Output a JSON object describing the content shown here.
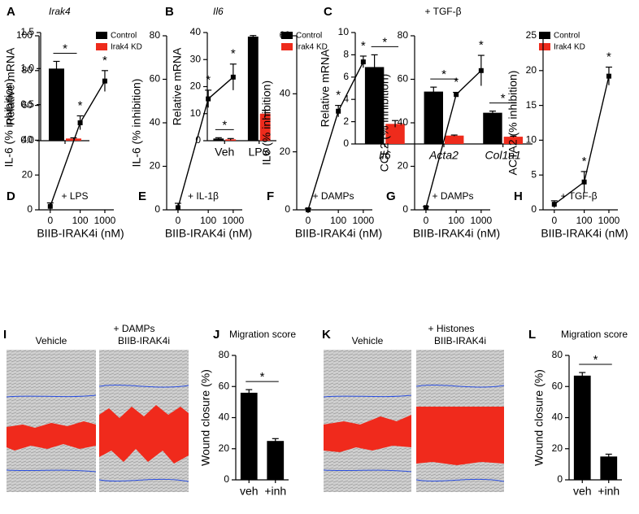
{
  "chart_data": [
    {
      "type": "bar",
      "panel": "A",
      "title": "Irak4",
      "ylabel": "Relative mRNA",
      "categories": [
        null
      ],
      "series": [
        {
          "name": "Control",
          "color": "#000000",
          "values": [
            1.0
          ],
          "errors": [
            0.1
          ]
        },
        {
          "name": "Irak4 KD",
          "color": "#ee2b1c",
          "values": [
            0.03
          ],
          "errors": [
            0.01
          ]
        }
      ],
      "ylim": [
        0,
        1.5
      ],
      "yticks": [
        {
          "value": 0,
          "label": "0.0"
        },
        {
          "value": 0.5,
          "label": "0.5"
        },
        {
          "value": 1,
          "label": "1.0"
        },
        {
          "value": 1.5,
          "label": "1.5"
        }
      ],
      "legend": "right",
      "stars": [
        "*"
      ]
    },
    {
      "type": "bar",
      "panel": "B",
      "title": "Il6",
      "ylabel": "Relative mRNA",
      "categories": [
        "Veh",
        "LPS"
      ],
      "series": [
        {
          "name": "Control",
          "color": "#000000",
          "values": [
            0.8,
            38.5
          ],
          "errors": [
            0.3,
            0.4
          ]
        },
        {
          "name": "Irak4 KD",
          "color": "#ee2b1c",
          "values": [
            0.5,
            10
          ],
          "errors": [
            0.3,
            1.2
          ]
        }
      ],
      "ylim": [
        0,
        40
      ],
      "yticks": [
        0,
        10,
        20,
        30,
        40
      ],
      "legend": "right",
      "stars": [
        "*"
      ]
    },
    {
      "type": "bar",
      "panel": "C",
      "title": "+ TGF-β",
      "ylabel": "Relative mRNA",
      "categories": [
        "Il6",
        "Acta2",
        "Col1a1"
      ],
      "series": [
        {
          "name": "Control",
          "color": "#000000",
          "values": [
            6.9,
            4.7,
            2.8
          ],
          "errors": [
            1.1,
            0.4,
            0.15
          ]
        },
        {
          "name": "Irak4 KD",
          "color": "#ee2b1c",
          "values": [
            1.8,
            0.75,
            0.65
          ],
          "errors": [
            0.3,
            0.05,
            0.05
          ]
        }
      ],
      "ylim": [
        0,
        10
      ],
      "yticks": [
        0,
        2,
        4,
        6,
        8,
        10
      ],
      "legend": "right",
      "stars": [
        "*",
        "*",
        "*"
      ]
    },
    {
      "type": "line",
      "panel": "D",
      "title": "+ LPS",
      "ylabel": "IL-6 (% inhibition)",
      "xlabel": "BIIB-IRAK4i (nM)",
      "categories": [
        "0",
        "100",
        "1000"
      ],
      "values": [
        2,
        50,
        74
      ],
      "errors": [
        2,
        4,
        6
      ],
      "color": "#000000",
      "ylim": [
        0,
        100
      ],
      "yticks": [
        0,
        20,
        40,
        60,
        80,
        100
      ],
      "stars": [
        "*",
        "*"
      ]
    },
    {
      "type": "line",
      "panel": "E",
      "title": "+ IL-1β",
      "ylabel": "IL-6 (% inhibition)",
      "xlabel": "BIIB-IRAK4i (nM)",
      "categories": [
        "0",
        "100",
        "1000"
      ],
      "values": [
        1,
        51,
        61
      ],
      "errors": [
        2,
        4,
        6
      ],
      "color": "#000000",
      "ylim": [
        0,
        80
      ],
      "yticks": [
        0,
        20,
        40,
        60,
        80
      ],
      "stars": [
        "*",
        "*"
      ]
    },
    {
      "type": "line",
      "panel": "F",
      "title": "+ DAMPs",
      "ylabel": "IL6 (% inhibition)",
      "xlabel": "BIIB-IRAK4i (nM)",
      "categories": [
        "0",
        "100",
        "1000"
      ],
      "values": [
        0,
        34,
        51
      ],
      "errors": [
        0.5,
        2,
        2
      ],
      "color": "#000000",
      "ylim": [
        0,
        60
      ],
      "yticks": [
        0,
        20,
        40,
        60
      ],
      "stars": [
        "*",
        "*"
      ]
    },
    {
      "type": "line",
      "panel": "G",
      "title": "+ DAMPs",
      "ylabel": "CCL2 (% inhibition)",
      "xlabel": "BIIB-IRAK4i (nM)",
      "categories": [
        "0",
        "100",
        "1000"
      ],
      "values": [
        1,
        53,
        64
      ],
      "errors": [
        0.5,
        1,
        7
      ],
      "color": "#000000",
      "ylim": [
        0,
        80
      ],
      "yticks": [
        0,
        20,
        40,
        60,
        80
      ],
      "stars": [
        "*",
        "*"
      ]
    },
    {
      "type": "line",
      "panel": "H",
      "title": "+ TGF-β",
      "ylabel": "ACTA2 (% inhibition)",
      "xlabel": "BIIB-IRAK4i (nM)",
      "categories": [
        "0",
        "100",
        "1000"
      ],
      "values": [
        0.8,
        4,
        19.2
      ],
      "errors": [
        0.5,
        1.5,
        1.3
      ],
      "color": "#000000",
      "ylim": [
        0,
        25
      ],
      "yticks": [
        0,
        5,
        10,
        15,
        20,
        25
      ],
      "stars": [
        "*",
        "*"
      ]
    },
    {
      "type": "bar",
      "panel": "J",
      "title": "Migration score",
      "ylabel": "Wound closure (%)",
      "categories": [
        "veh",
        "+inh"
      ],
      "series": [
        {
          "color": "#000000",
          "values": [
            56,
            25
          ],
          "errors": [
            2,
            1.5
          ]
        }
      ],
      "ylim": [
        0,
        80
      ],
      "yticks": [
        0,
        20,
        40,
        60,
        80
      ],
      "stars": [
        "*"
      ]
    },
    {
      "type": "bar",
      "panel": "L",
      "title": "Migration score",
      "ylabel": "Wound closure (%)",
      "categories": [
        "veh",
        "+inh"
      ],
      "series": [
        {
          "color": "#000000",
          "values": [
            67,
            15
          ],
          "errors": [
            2,
            1.5
          ]
        }
      ],
      "ylim": [
        0,
        80
      ],
      "yticks": [
        0,
        20,
        40,
        60,
        80
      ],
      "stars": [
        "*"
      ]
    }
  ],
  "image_panels": [
    {
      "panel": "I",
      "title": "+ DAMPs",
      "images": [
        "Vehicle",
        "BIIB-IRAK4i"
      ]
    },
    {
      "panel": "K",
      "title": "+ Histones",
      "images": [
        "Vehicle",
        "BIIB-IRAK4i"
      ]
    }
  ]
}
